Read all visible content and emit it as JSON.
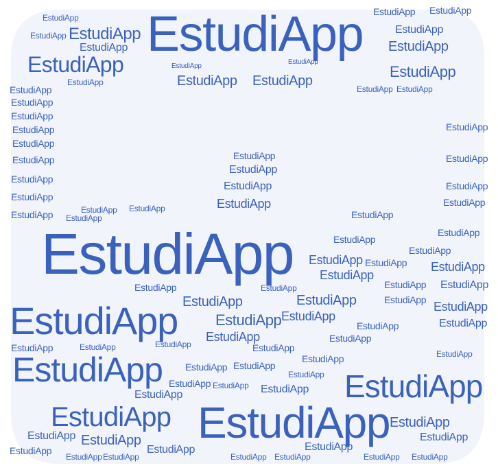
{
  "word": "EstudiApp",
  "colors": {
    "text": "#3a62bd",
    "shape_fill": "#f2f4fb",
    "background": "#ffffff"
  }
}
